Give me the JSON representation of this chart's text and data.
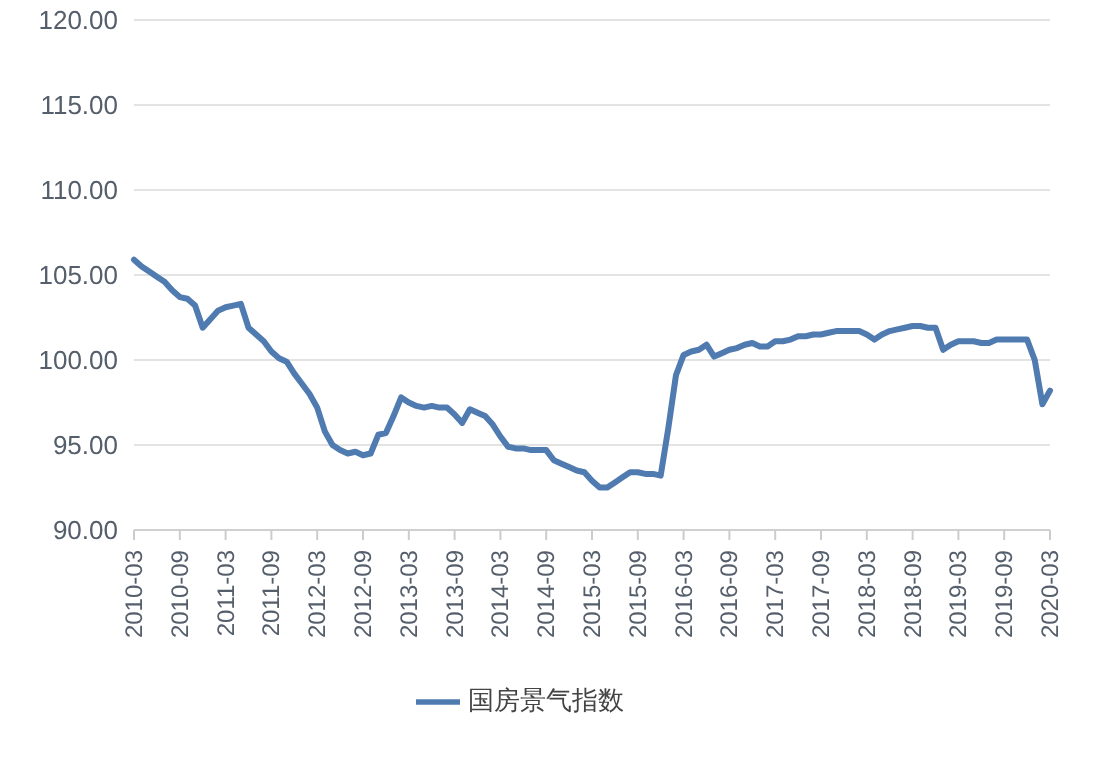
{
  "chart_data": {
    "type": "line",
    "categories": [
      "2010-03",
      null,
      null,
      null,
      null,
      null,
      "2010-09",
      null,
      null,
      null,
      null,
      null,
      "2011-03",
      null,
      null,
      null,
      null,
      null,
      "2011-09",
      null,
      null,
      null,
      null,
      null,
      "2012-03",
      null,
      null,
      null,
      null,
      null,
      "2012-09",
      null,
      null,
      null,
      null,
      null,
      "2013-03",
      null,
      null,
      null,
      null,
      null,
      "2013-09",
      null,
      null,
      null,
      null,
      null,
      "2014-03",
      null,
      null,
      null,
      null,
      null,
      "2014-09",
      null,
      null,
      null,
      null,
      null,
      "2015-03",
      null,
      null,
      null,
      null,
      null,
      "2015-09",
      null,
      null,
      null,
      null,
      null,
      "2016-03",
      null,
      null,
      null,
      null,
      null,
      "2016-09",
      null,
      null,
      null,
      null,
      null,
      "2017-03",
      null,
      null,
      null,
      null,
      null,
      "2017-09",
      null,
      null,
      null,
      null,
      null,
      "2018-03",
      null,
      null,
      null,
      null,
      null,
      "2018-09",
      null,
      null,
      null,
      null,
      null,
      "2019-03",
      null,
      null,
      null,
      null,
      null,
      "2019-09",
      null,
      null,
      null,
      null,
      null,
      "2020-03"
    ],
    "series": [
      {
        "name": "国房景气指数",
        "color": "#4f7bb0",
        "values": [
          105.9,
          105.5,
          105.2,
          104.9,
          104.6,
          104.1,
          103.7,
          103.6,
          103.2,
          101.9,
          102.4,
          102.9,
          103.1,
          103.2,
          103.3,
          101.9,
          101.5,
          101.1,
          100.5,
          100.1,
          99.9,
          99.2,
          98.6,
          98.0,
          97.2,
          95.8,
          95.0,
          94.7,
          94.5,
          94.6,
          94.4,
          94.5,
          95.6,
          95.7,
          96.7,
          97.8,
          97.5,
          97.3,
          97.2,
          97.3,
          97.2,
          97.2,
          96.8,
          96.3,
          97.1,
          96.9,
          96.7,
          96.2,
          95.5,
          94.9,
          94.8,
          94.8,
          94.7,
          94.7,
          94.7,
          94.1,
          93.9,
          93.7,
          93.5,
          93.4,
          92.9,
          92.5,
          92.5,
          92.8,
          93.1,
          93.4,
          93.4,
          93.3,
          93.3,
          93.2,
          96.0,
          99.1,
          100.3,
          100.5,
          100.6,
          100.9,
          100.2,
          100.4,
          100.6,
          100.7,
          100.9,
          101.0,
          100.8,
          100.8,
          101.1,
          101.1,
          101.2,
          101.4,
          101.4,
          101.5,
          101.5,
          101.6,
          101.7,
          101.7,
          101.7,
          101.7,
          101.5,
          101.2,
          101.5,
          101.7,
          101.8,
          101.9,
          102.0,
          102.0,
          101.9,
          101.9,
          100.6,
          100.9,
          101.1,
          101.1,
          101.1,
          101.0,
          101.0,
          101.2,
          101.2,
          101.2,
          101.2,
          101.2,
          100.0,
          97.4,
          98.2
        ]
      }
    ],
    "ylim": [
      90,
      120
    ],
    "yticks": [
      {
        "value": 90,
        "label": "90.00"
      },
      {
        "value": 95,
        "label": "95.00"
      },
      {
        "value": 100,
        "label": "100.00"
      },
      {
        "value": 105,
        "label": "105.00"
      },
      {
        "value": 110,
        "label": "110.00"
      },
      {
        "value": 115,
        "label": "115.00"
      },
      {
        "value": 120,
        "label": "120.00"
      }
    ],
    "grid": "y",
    "legend": "bottom",
    "marker": "none",
    "line_style": "solid"
  }
}
